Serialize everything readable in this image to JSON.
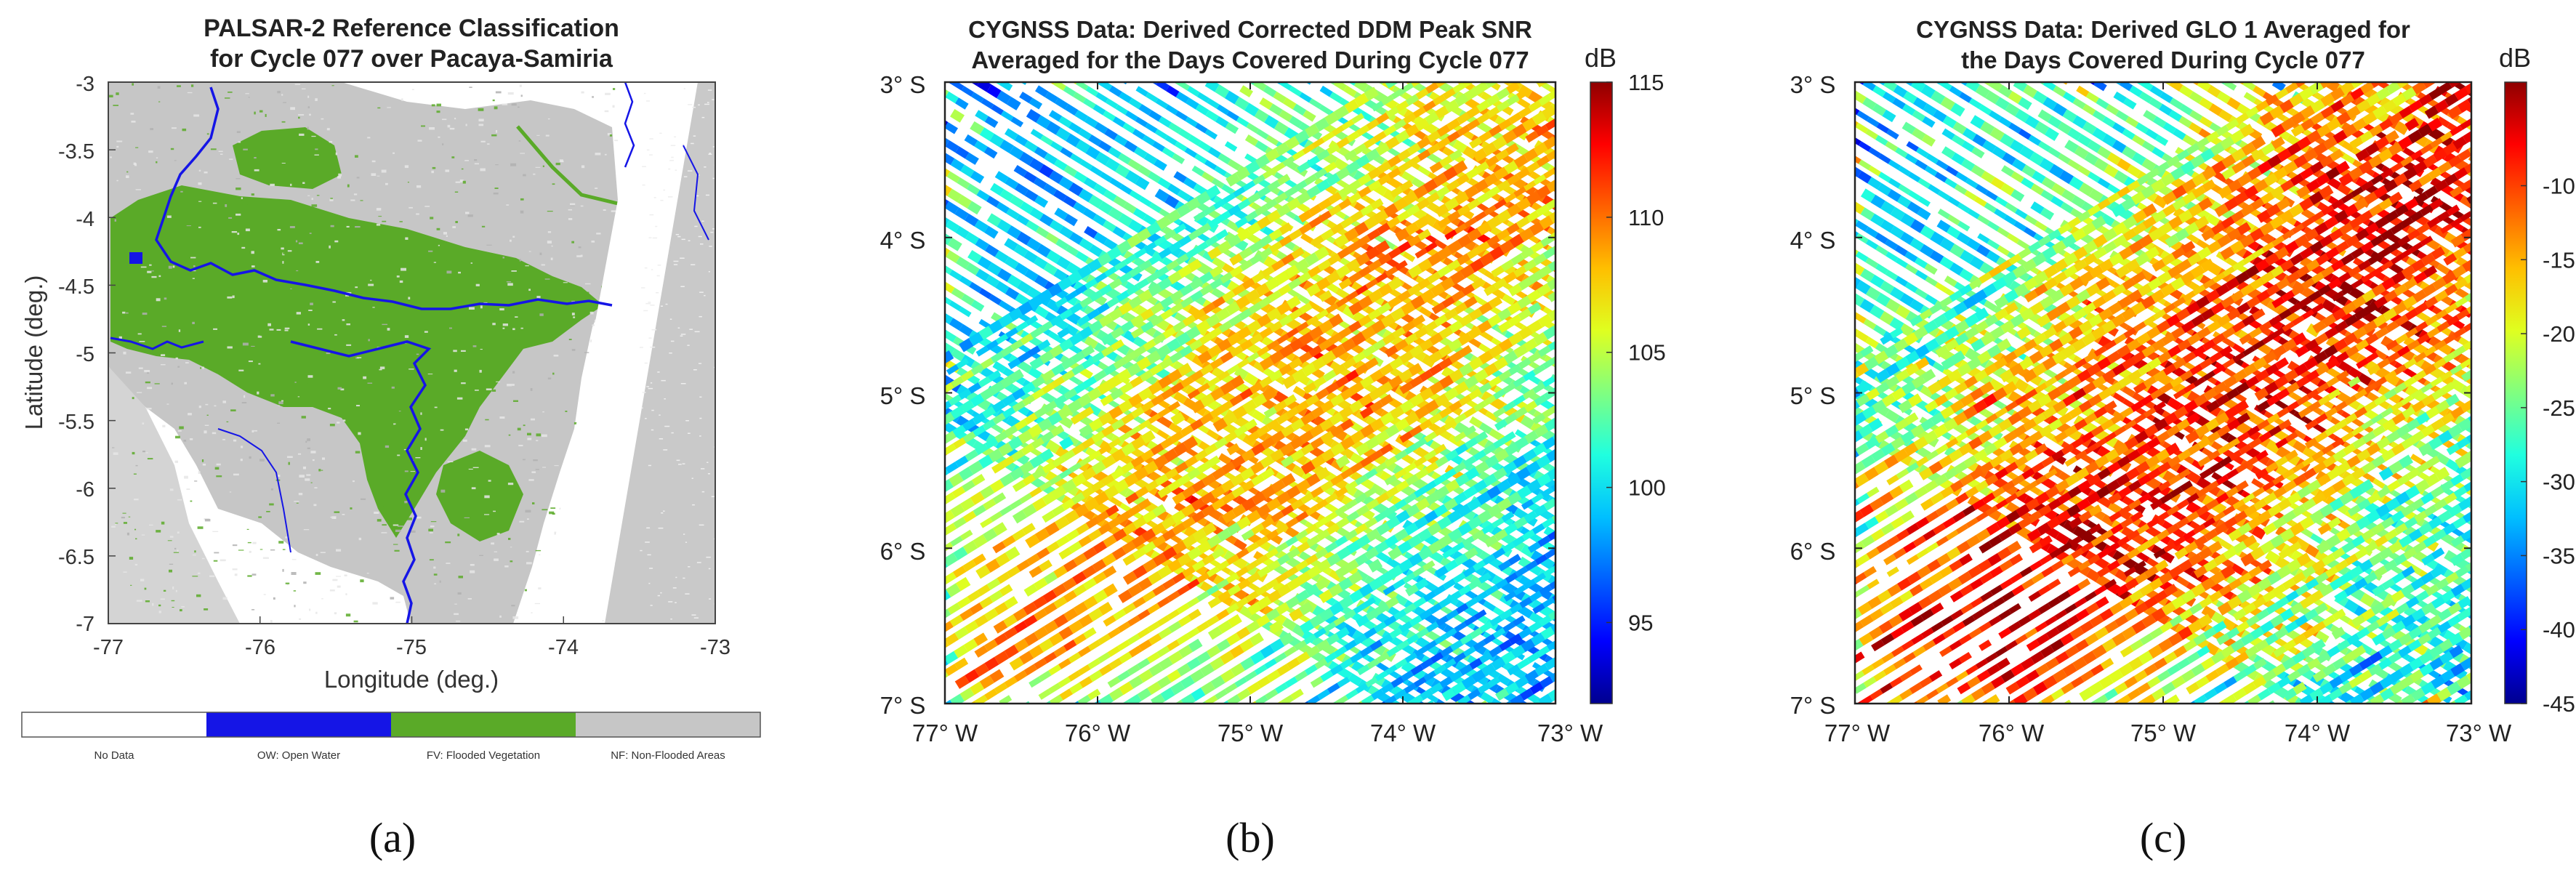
{
  "figure": {
    "panels": [
      {
        "id": "a",
        "caption": "(a)"
      },
      {
        "id": "b",
        "caption": "(b)"
      },
      {
        "id": "c",
        "caption": "(c)"
      }
    ]
  },
  "colors": {
    "no_data": "#ffffff",
    "open_water": "#1515e6",
    "flooded_vegetation": "#5aaa28",
    "non_flooded": "#c6c6c6",
    "jet": [
      "#00008f",
      "#0000ff",
      "#0060ff",
      "#00bfff",
      "#20ffdf",
      "#80ff80",
      "#dfff20",
      "#ffbf00",
      "#ff6000",
      "#ff0000",
      "#8f0000"
    ]
  },
  "chart_data": [
    {
      "type": "heatmap",
      "panel": "a",
      "title": [
        "PALSAR-2 Reference Classification",
        "for Cycle 077 over Pacaya-Samiria"
      ],
      "xlabel": "Longitude (deg.)",
      "ylabel": "Latitude (deg.)",
      "xlim": [
        -77,
        -73
      ],
      "ylim": [
        -7,
        -3
      ],
      "xticks": [
        -77,
        -76,
        -75,
        -74,
        -73
      ],
      "xticklabels": [
        "-77",
        "-76",
        "-75",
        "-74",
        "-73"
      ],
      "yticks": [
        -3,
        -3.5,
        -4,
        -4.5,
        -5,
        -5.5,
        -6,
        -6.5,
        -7
      ],
      "yticklabels": [
        "-3",
        "-3.5",
        "-4",
        "-4.5",
        "-5",
        "-5.5",
        "-6",
        "-6.5",
        "-7"
      ],
      "classes": [
        {
          "label": "No Data",
          "color_key": "no_data"
        },
        {
          "label": "OW: Open Water",
          "color_key": "open_water"
        },
        {
          "label": "FV: Flooded Vegetation",
          "color_key": "flooded_vegetation"
        },
        {
          "label": "NF: Non-Flooded Areas",
          "color_key": "non_flooded"
        }
      ]
    },
    {
      "type": "heatmap",
      "panel": "b",
      "title": [
        "CYGNSS Data: Derived Corrected DDM Peak SNR",
        "Averaged for the Days Covered During Cycle 077"
      ],
      "xlim": [
        -77,
        -73
      ],
      "ylim": [
        -7,
        -3
      ],
      "xticklabels": [
        "77° W",
        "76° W",
        "75° W",
        "74° W",
        "73° W"
      ],
      "yticklabels": [
        "3° S",
        "4° S",
        "5° S",
        "6° S",
        "7° S"
      ],
      "colorbar": {
        "unit": "dB",
        "min": 92,
        "max": 115,
        "ticks": [
          95,
          100,
          105,
          110,
          115
        ]
      },
      "value_range": [
        92,
        115
      ]
    },
    {
      "type": "heatmap",
      "panel": "c",
      "title": [
        "CYGNSS Data: Derived GLO 1 Averaged for",
        "the Days Covered During Cycle 077"
      ],
      "xlim": [
        -77,
        -73
      ],
      "ylim": [
        -7,
        -3
      ],
      "xticklabels": [
        "77° W",
        "76° W",
        "75° W",
        "74° W",
        "73° W"
      ],
      "yticklabels": [
        "3° S",
        "4° S",
        "5° S",
        "6° S",
        "7° S"
      ],
      "colorbar": {
        "unit": "dB",
        "min": -45,
        "max": -3,
        "ticks": [
          -10,
          -15,
          -20,
          -25,
          -30,
          -35,
          -40,
          -45
        ]
      },
      "value_range": [
        -45,
        -3
      ]
    }
  ]
}
